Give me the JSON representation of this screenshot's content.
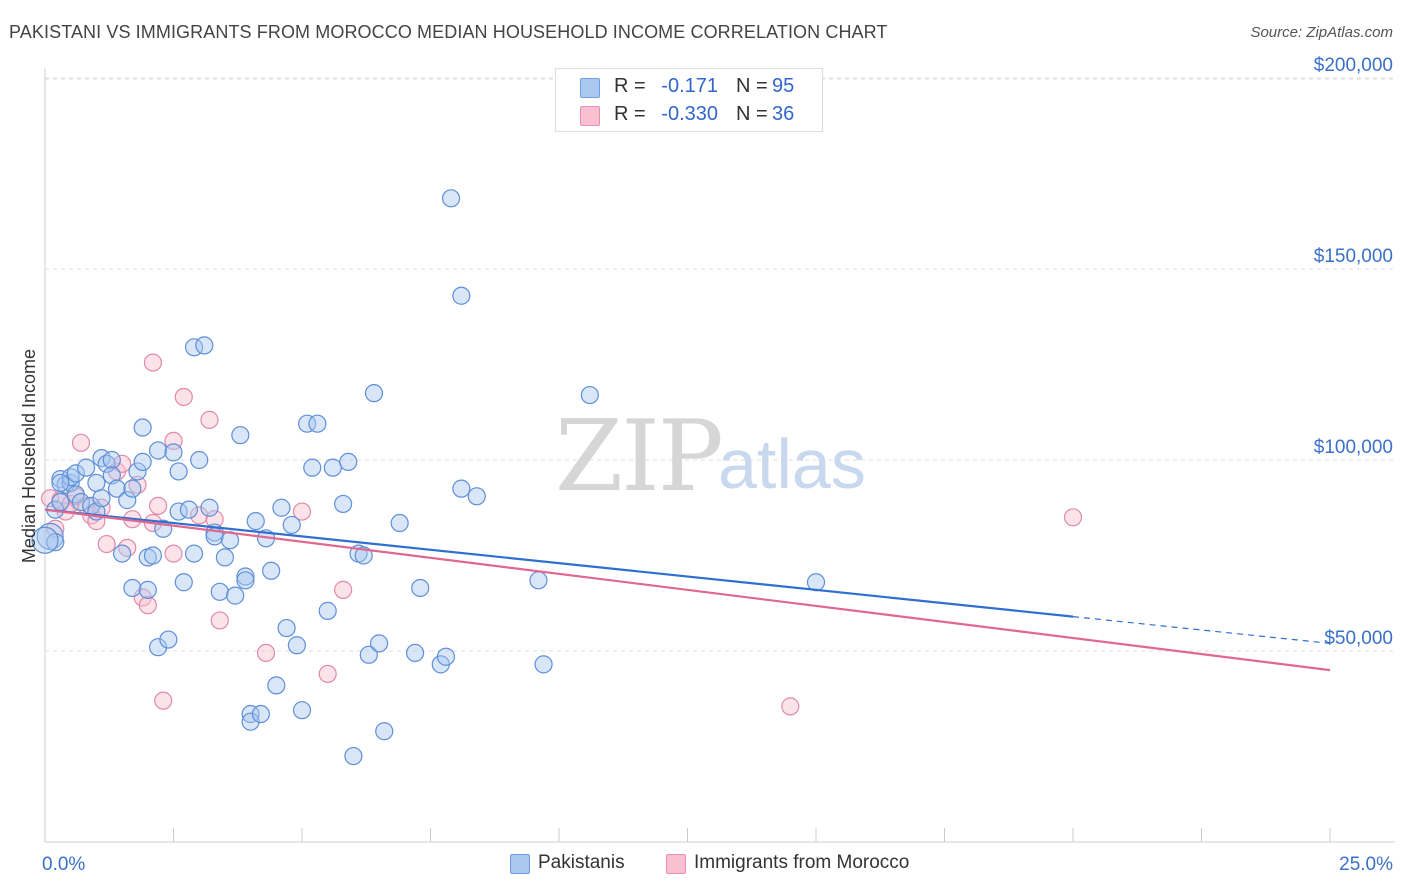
{
  "title": "PAKISTANI VS IMMIGRANTS FROM MOROCCO MEDIAN HOUSEHOLD INCOME CORRELATION CHART",
  "source": "Source: ZipAtlas.com",
  "watermark": {
    "zip": "ZIP",
    "atlas": "atlas"
  },
  "legend": {
    "rows": [
      {
        "r_label": "R =",
        "r_value": "-0.171",
        "n_label": "N =",
        "n_value": "95",
        "color": "#a8c8f0",
        "border": "#6f9fe0"
      },
      {
        "r_label": "R =",
        "r_value": "-0.330",
        "n_label": "N =",
        "n_value": "36",
        "color": "#f8c0d0",
        "border": "#e890ac"
      }
    ]
  },
  "bottom_legend": [
    {
      "label": "Pakistanis",
      "color": "#a8c8f0",
      "border": "#6f9fe0"
    },
    {
      "label": "Immigrants from Morocco",
      "color": "#f8c0d0",
      "border": "#e890ac"
    }
  ],
  "colors": {
    "blue_fill": "#a8c8f0",
    "blue_stroke": "#5f8fd8",
    "blue_line": "#2f6fd0",
    "pink_fill": "#f8c0d0",
    "pink_stroke": "#e08aa8",
    "pink_line": "#e0688f",
    "axis_text": "#3a70c8",
    "grid": "#dddddd"
  },
  "chart_data": {
    "type": "scatter",
    "title": "PAKISTANI VS IMMIGRANTS FROM MOROCCO MEDIAN HOUSEHOLD INCOME CORRELATION CHART",
    "xlabel": "",
    "ylabel": "Median Household Income",
    "xlim": [
      0,
      25
    ],
    "ylim": [
      0,
      205000
    ],
    "x_tick_labels": [
      "0.0%",
      "25.0%"
    ],
    "y_ticks": [
      50000,
      100000,
      150000,
      200000
    ],
    "y_tick_labels": [
      "$50,000",
      "$100,000",
      "$150,000",
      "$200,000"
    ],
    "grid": true,
    "legend_position": "top-center",
    "series": [
      {
        "name": "Pakistanis",
        "trend": {
          "x0": 0.0,
          "y0": 87000,
          "x1": 20.0,
          "y1": 59000,
          "dashed_to_x": 25.0,
          "dashed_to_y": 52000
        },
        "points": [
          [
            0.1,
            80000
          ],
          [
            0.2,
            78500
          ],
          [
            0.2,
            87000
          ],
          [
            0.3,
            95000
          ],
          [
            0.3,
            89000
          ],
          [
            0.4,
            93500
          ],
          [
            0.5,
            94000
          ],
          [
            0.5,
            95500
          ],
          [
            0.6,
            91000
          ],
          [
            0.6,
            96500
          ],
          [
            0.7,
            89000
          ],
          [
            0.8,
            98000
          ],
          [
            0.9,
            88000
          ],
          [
            1.0,
            94000
          ],
          [
            1.0,
            86500
          ],
          [
            1.1,
            90000
          ],
          [
            1.1,
            100500
          ],
          [
            1.2,
            99000
          ],
          [
            1.3,
            100000
          ],
          [
            1.3,
            96000
          ],
          [
            1.4,
            92500
          ],
          [
            1.5,
            75500
          ],
          [
            1.6,
            89500
          ],
          [
            1.7,
            92500
          ],
          [
            1.7,
            66500
          ],
          [
            1.8,
            97000
          ],
          [
            1.9,
            99500
          ],
          [
            1.9,
            108500
          ],
          [
            2.0,
            74500
          ],
          [
            2.0,
            66000
          ],
          [
            2.1,
            75000
          ],
          [
            2.2,
            102500
          ],
          [
            2.2,
            51000
          ],
          [
            2.3,
            82000
          ],
          [
            2.4,
            53000
          ],
          [
            2.5,
            102000
          ],
          [
            2.6,
            97000
          ],
          [
            2.6,
            86500
          ],
          [
            2.7,
            68000
          ],
          [
            2.8,
            87000
          ],
          [
            2.9,
            129500
          ],
          [
            2.9,
            75500
          ],
          [
            3.0,
            100000
          ],
          [
            3.1,
            130000
          ],
          [
            3.2,
            87500
          ],
          [
            3.3,
            81000
          ],
          [
            3.3,
            80000
          ],
          [
            3.4,
            65500
          ],
          [
            3.5,
            74500
          ],
          [
            3.6,
            79000
          ],
          [
            3.7,
            64500
          ],
          [
            3.8,
            106500
          ],
          [
            3.9,
            69500
          ],
          [
            3.9,
            68500
          ],
          [
            4.0,
            33500
          ],
          [
            4.0,
            31500
          ],
          [
            4.1,
            84000
          ],
          [
            4.2,
            33500
          ],
          [
            4.3,
            79500
          ],
          [
            4.4,
            71000
          ],
          [
            4.5,
            41000
          ],
          [
            4.6,
            87500
          ],
          [
            4.7,
            56000
          ],
          [
            4.8,
            83000
          ],
          [
            4.9,
            51500
          ],
          [
            5.0,
            34500
          ],
          [
            5.1,
            109500
          ],
          [
            5.2,
            98000
          ],
          [
            5.3,
            109500
          ],
          [
            5.5,
            60500
          ],
          [
            5.6,
            98000
          ],
          [
            5.8,
            88500
          ],
          [
            5.9,
            99500
          ],
          [
            6.0,
            22500
          ],
          [
            6.1,
            75500
          ],
          [
            6.2,
            75000
          ],
          [
            6.3,
            49000
          ],
          [
            6.4,
            117500
          ],
          [
            6.5,
            52000
          ],
          [
            6.6,
            29000
          ],
          [
            6.9,
            83500
          ],
          [
            7.2,
            49500
          ],
          [
            7.3,
            66500
          ],
          [
            7.7,
            46500
          ],
          [
            7.8,
            48500
          ],
          [
            7.9,
            168500
          ],
          [
            8.1,
            92500
          ],
          [
            8.1,
            143000
          ],
          [
            8.4,
            90500
          ],
          [
            9.6,
            68500
          ],
          [
            9.7,
            46500
          ],
          [
            10.6,
            117000
          ],
          [
            15.0,
            68000
          ],
          [
            0.0,
            79000
          ],
          [
            0.3,
            94000
          ]
        ]
      },
      {
        "name": "Immigrants from Morocco",
        "trend": {
          "x0": 0.0,
          "y0": 87000,
          "x1": 25.0,
          "y1": 45000
        },
        "points": [
          [
            0.1,
            90000
          ],
          [
            0.2,
            82000
          ],
          [
            0.3,
            89500
          ],
          [
            0.4,
            86500
          ],
          [
            0.5,
            88500
          ],
          [
            0.6,
            90500
          ],
          [
            0.7,
            104500
          ],
          [
            0.8,
            88000
          ],
          [
            0.9,
            85500
          ],
          [
            1.0,
            84000
          ],
          [
            1.1,
            87500
          ],
          [
            1.2,
            78000
          ],
          [
            1.4,
            97000
          ],
          [
            1.5,
            99000
          ],
          [
            1.6,
            77000
          ],
          [
            1.7,
            84500
          ],
          [
            1.8,
            93500
          ],
          [
            1.9,
            64000
          ],
          [
            2.0,
            62000
          ],
          [
            2.1,
            83500
          ],
          [
            2.1,
            125500
          ],
          [
            2.2,
            88000
          ],
          [
            2.3,
            37000
          ],
          [
            2.5,
            105000
          ],
          [
            2.5,
            75500
          ],
          [
            2.7,
            116500
          ],
          [
            3.0,
            85500
          ],
          [
            3.2,
            110500
          ],
          [
            3.3,
            84500
          ],
          [
            3.4,
            58000
          ],
          [
            4.3,
            49500
          ],
          [
            5.0,
            86500
          ],
          [
            5.5,
            44000
          ],
          [
            5.8,
            66000
          ],
          [
            14.5,
            35500
          ],
          [
            20.0,
            85000
          ]
        ]
      }
    ]
  }
}
